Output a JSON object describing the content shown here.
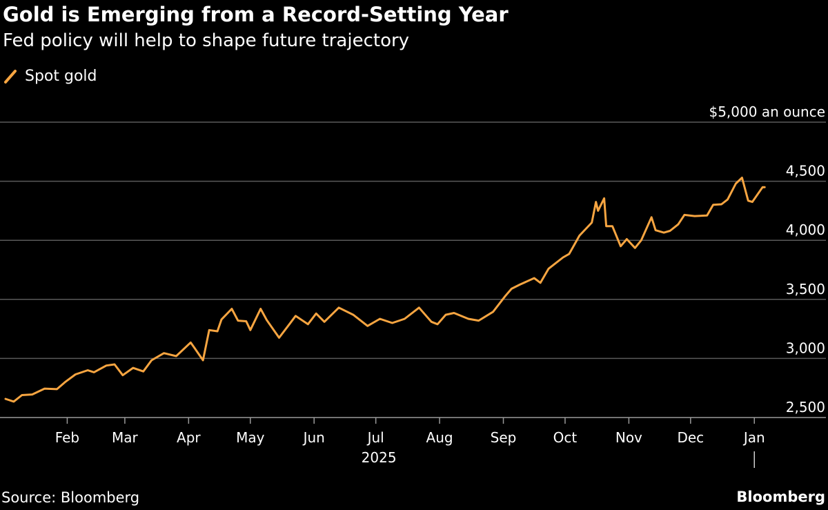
{
  "colors": {
    "background": "#000000",
    "line": "#F7A541",
    "grid": "#5a5a5a",
    "text": "#ffffff"
  },
  "footer": {
    "source": "Source: Bloomberg",
    "brand": "Bloomberg"
  },
  "chart_data": {
    "type": "line",
    "title": "Gold is Emerging from a Record-Setting Year",
    "subtitle": "Fed policy will help to shape future trajectory",
    "y_unit_label": "$5,000 an ounce",
    "xlabel": "2025",
    "ylabel": "",
    "ylim": [
      2500,
      5000
    ],
    "y_ticks": [
      2500,
      3000,
      3500,
      4000,
      4500,
      5000
    ],
    "y_tick_labels": [
      "2,500",
      "3,000",
      "3,500",
      "4,000",
      "4,500",
      "$5,000 an ounce"
    ],
    "x_ticks": [
      "2025-02-01",
      "2025-03-01",
      "2025-04-01",
      "2025-05-01",
      "2025-06-01",
      "2025-07-01",
      "2025-08-01",
      "2025-09-01",
      "2025-10-01",
      "2025-11-01",
      "2025-12-01",
      "2026-01-01"
    ],
    "x_tick_labels": [
      "Feb",
      "Mar",
      "Apr",
      "May",
      "Jun",
      "Jul",
      "Aug",
      "Sep",
      "Oct",
      "Nov",
      "Dec",
      "Jan"
    ],
    "x_year_label": "2025",
    "grid": true,
    "legend_position": "top-left",
    "series": [
      {
        "name": "Spot gold",
        "color": "#F7A541",
        "points": [
          [
            "2025-01-02",
            2658
          ],
          [
            "2025-01-06",
            2635
          ],
          [
            "2025-01-10",
            2690
          ],
          [
            "2025-01-15",
            2695
          ],
          [
            "2025-01-21",
            2745
          ],
          [
            "2025-01-27",
            2740
          ],
          [
            "2025-01-31",
            2800
          ],
          [
            "2025-02-05",
            2865
          ],
          [
            "2025-02-11",
            2900
          ],
          [
            "2025-02-14",
            2883
          ],
          [
            "2025-02-20",
            2940
          ],
          [
            "2025-02-24",
            2950
          ],
          [
            "2025-02-28",
            2858
          ],
          [
            "2025-03-05",
            2920
          ],
          [
            "2025-03-10",
            2890
          ],
          [
            "2025-03-14",
            2985
          ],
          [
            "2025-03-20",
            3045
          ],
          [
            "2025-03-26",
            3020
          ],
          [
            "2025-04-02",
            3135
          ],
          [
            "2025-04-04",
            3085
          ],
          [
            "2025-04-08",
            2985
          ],
          [
            "2025-04-11",
            3240
          ],
          [
            "2025-04-15",
            3230
          ],
          [
            "2025-04-17",
            3330
          ],
          [
            "2025-04-22",
            3420
          ],
          [
            "2025-04-25",
            3320
          ],
          [
            "2025-04-29",
            3315
          ],
          [
            "2025-05-01",
            3240
          ],
          [
            "2025-05-06",
            3420
          ],
          [
            "2025-05-09",
            3325
          ],
          [
            "2025-05-15",
            3175
          ],
          [
            "2025-05-20",
            3290
          ],
          [
            "2025-05-23",
            3360
          ],
          [
            "2025-05-29",
            3290
          ],
          [
            "2025-06-02",
            3380
          ],
          [
            "2025-06-06",
            3310
          ],
          [
            "2025-06-13",
            3430
          ],
          [
            "2025-06-20",
            3370
          ],
          [
            "2025-06-27",
            3275
          ],
          [
            "2025-07-03",
            3335
          ],
          [
            "2025-07-09",
            3300
          ],
          [
            "2025-07-15",
            3335
          ],
          [
            "2025-07-22",
            3430
          ],
          [
            "2025-07-28",
            3310
          ],
          [
            "2025-07-31",
            3290
          ],
          [
            "2025-08-04",
            3370
          ],
          [
            "2025-08-08",
            3385
          ],
          [
            "2025-08-15",
            3335
          ],
          [
            "2025-08-20",
            3320
          ],
          [
            "2025-08-27",
            3395
          ],
          [
            "2025-09-02",
            3530
          ],
          [
            "2025-09-05",
            3590
          ],
          [
            "2025-09-09",
            3625
          ],
          [
            "2025-09-16",
            3680
          ],
          [
            "2025-09-19",
            3640
          ],
          [
            "2025-09-23",
            3760
          ],
          [
            "2025-09-30",
            3855
          ],
          [
            "2025-10-03",
            3885
          ],
          [
            "2025-10-08",
            4040
          ],
          [
            "2025-10-14",
            4150
          ],
          [
            "2025-10-16",
            4325
          ],
          [
            "2025-10-17",
            4250
          ],
          [
            "2025-10-20",
            4355
          ],
          [
            "2025-10-21",
            4120
          ],
          [
            "2025-10-24",
            4120
          ],
          [
            "2025-10-28",
            3950
          ],
          [
            "2025-10-31",
            4010
          ],
          [
            "2025-11-04",
            3935
          ],
          [
            "2025-11-07",
            4000
          ],
          [
            "2025-11-12",
            4195
          ],
          [
            "2025-11-14",
            4085
          ],
          [
            "2025-11-18",
            4065
          ],
          [
            "2025-11-21",
            4080
          ],
          [
            "2025-11-25",
            4135
          ],
          [
            "2025-11-28",
            4215
          ],
          [
            "2025-12-03",
            4205
          ],
          [
            "2025-12-09",
            4210
          ],
          [
            "2025-12-12",
            4300
          ],
          [
            "2025-12-16",
            4305
          ],
          [
            "2025-12-19",
            4345
          ],
          [
            "2025-12-23",
            4480
          ],
          [
            "2025-12-26",
            4530
          ],
          [
            "2025-12-29",
            4335
          ],
          [
            "2025-12-31",
            4325
          ],
          [
            "2026-01-05",
            4450
          ],
          [
            "2026-01-06",
            4450
          ]
        ]
      }
    ]
  }
}
